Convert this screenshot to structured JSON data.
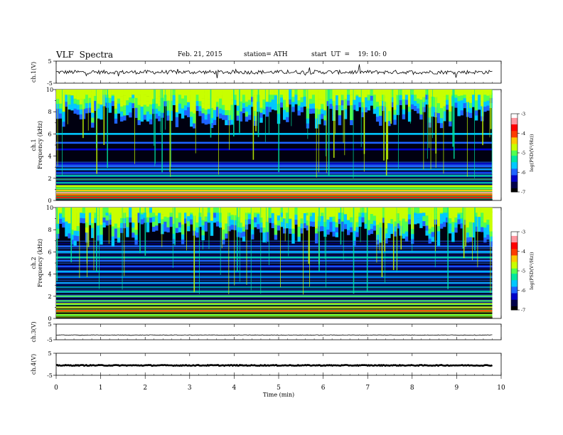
{
  "header": {
    "title": "VLF  Spectra",
    "date": "Feb. 21, 2015",
    "station": "station= ATH",
    "start": "start  UT  =    19: 10: 0"
  },
  "chart_data": [
    {
      "type": "line",
      "title": "",
      "ylabel": "ch.1(V)",
      "xlim": [
        0,
        10
      ],
      "ylim": [
        -5,
        5
      ],
      "yticks": [
        "5",
        "-5"
      ],
      "x": [
        0,
        1,
        2,
        3,
        4,
        5,
        6,
        7,
        8,
        9,
        9.8
      ],
      "values": [
        0,
        0,
        0,
        0,
        0,
        0,
        0,
        0,
        0,
        0,
        0
      ]
    },
    {
      "type": "heatmap",
      "ylabel": "ch.1",
      "ylabel2": "Frequency  (kHz)",
      "xlim": [
        0,
        10
      ],
      "ylim": [
        0,
        10
      ],
      "yticks": [
        "0",
        "2",
        "4",
        "6",
        "8",
        "10"
      ],
      "colorbar": {
        "label": "log(PSD(V²/Hz))",
        "min": -7,
        "max": -3,
        "ticks": [
          "-3",
          "-4",
          "-5",
          "-6",
          "-7"
        ]
      }
    },
    {
      "type": "heatmap",
      "ylabel": "ch.2",
      "ylabel2": "Frequency  (kHz)",
      "xlim": [
        0,
        10
      ],
      "ylim": [
        0,
        10
      ],
      "yticks": [
        "0",
        "2",
        "4",
        "6",
        "8",
        "10"
      ],
      "colorbar": {
        "label": "log(PSD(V²/Hz))",
        "min": -7,
        "max": -3,
        "ticks": [
          "-3",
          "-4",
          "-5",
          "-6",
          "-7"
        ]
      }
    },
    {
      "type": "line",
      "ylabel": "ch.3(V)",
      "xlim": [
        0,
        10
      ],
      "ylim": [
        -5,
        5
      ],
      "yticks": [
        "5",
        "-5"
      ],
      "x": [
        0,
        1,
        2,
        3,
        4,
        5,
        6,
        7,
        8,
        9,
        9.8
      ],
      "values": [
        -2,
        -2,
        -2,
        -2,
        -2,
        -2,
        -2,
        -2,
        -2,
        -2,
        -2
      ]
    },
    {
      "type": "line",
      "ylabel": "ch.4(V)",
      "xlim": [
        0,
        10
      ],
      "ylim": [
        -5,
        5
      ],
      "yticks": [
        "5",
        "-5"
      ],
      "x": [
        0,
        1,
        2,
        3,
        4,
        5,
        6,
        7,
        8,
        9,
        9.8
      ],
      "values": [
        -0.5,
        -0.5,
        -0.5,
        -0.5,
        -0.5,
        -0.5,
        -0.5,
        -0.5,
        -0.5,
        -0.5,
        -0.5
      ],
      "xlabel": "Time  (min)",
      "xticks": [
        "0",
        "1",
        "2",
        "3",
        "4",
        "5",
        "6",
        "7",
        "8",
        "9",
        "10"
      ]
    }
  ],
  "colors": {
    "palette": [
      "#000000",
      "#00004a",
      "#0000c8",
      "#1e64ff",
      "#00c8ff",
      "#00e6a0",
      "#50ff50",
      "#c8ff00",
      "#ffc800",
      "#ff3c00",
      "#ff0000",
      "#ff96a0",
      "#ffffff"
    ]
  }
}
